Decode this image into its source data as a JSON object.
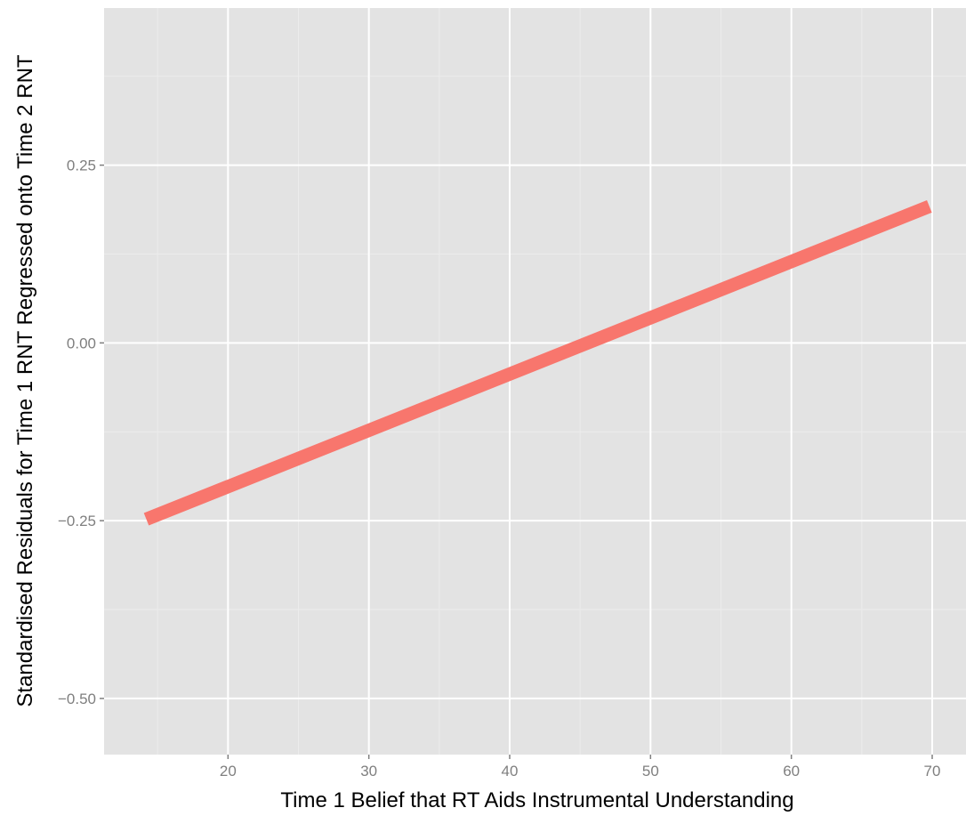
{
  "chart_data": {
    "type": "line",
    "title": "",
    "xlabel": "Time 1 Belief that RT Aids Instrumental Understanding",
    "ylabel": "Standardised Residuals for Time 1 RNT Regressed onto Time 2 RNT",
    "xlim": [
      11.2,
      72.4
    ],
    "ylim": [
      -0.579,
      0.471
    ],
    "x_ticks": [
      20,
      30,
      40,
      50,
      60,
      70
    ],
    "x_tick_labels": [
      "20",
      "30",
      "40",
      "50",
      "60",
      "70"
    ],
    "y_ticks": [
      0.25,
      0.0,
      -0.25,
      -0.5
    ],
    "y_tick_labels": [
      "0.25",
      "0.00",
      "−0.25",
      "−0.50"
    ],
    "grid": true,
    "legend": "none",
    "series": [
      {
        "x": [
          14.2,
          69.8
        ],
        "y": [
          -0.248,
          0.192
        ]
      }
    ],
    "colors": {
      "panel_background": "#e3e3e3",
      "grid_major": "#ffffff",
      "grid_minor": "#ececec",
      "line": "#f8766d",
      "tick_mark": "#7f7f7f"
    }
  }
}
